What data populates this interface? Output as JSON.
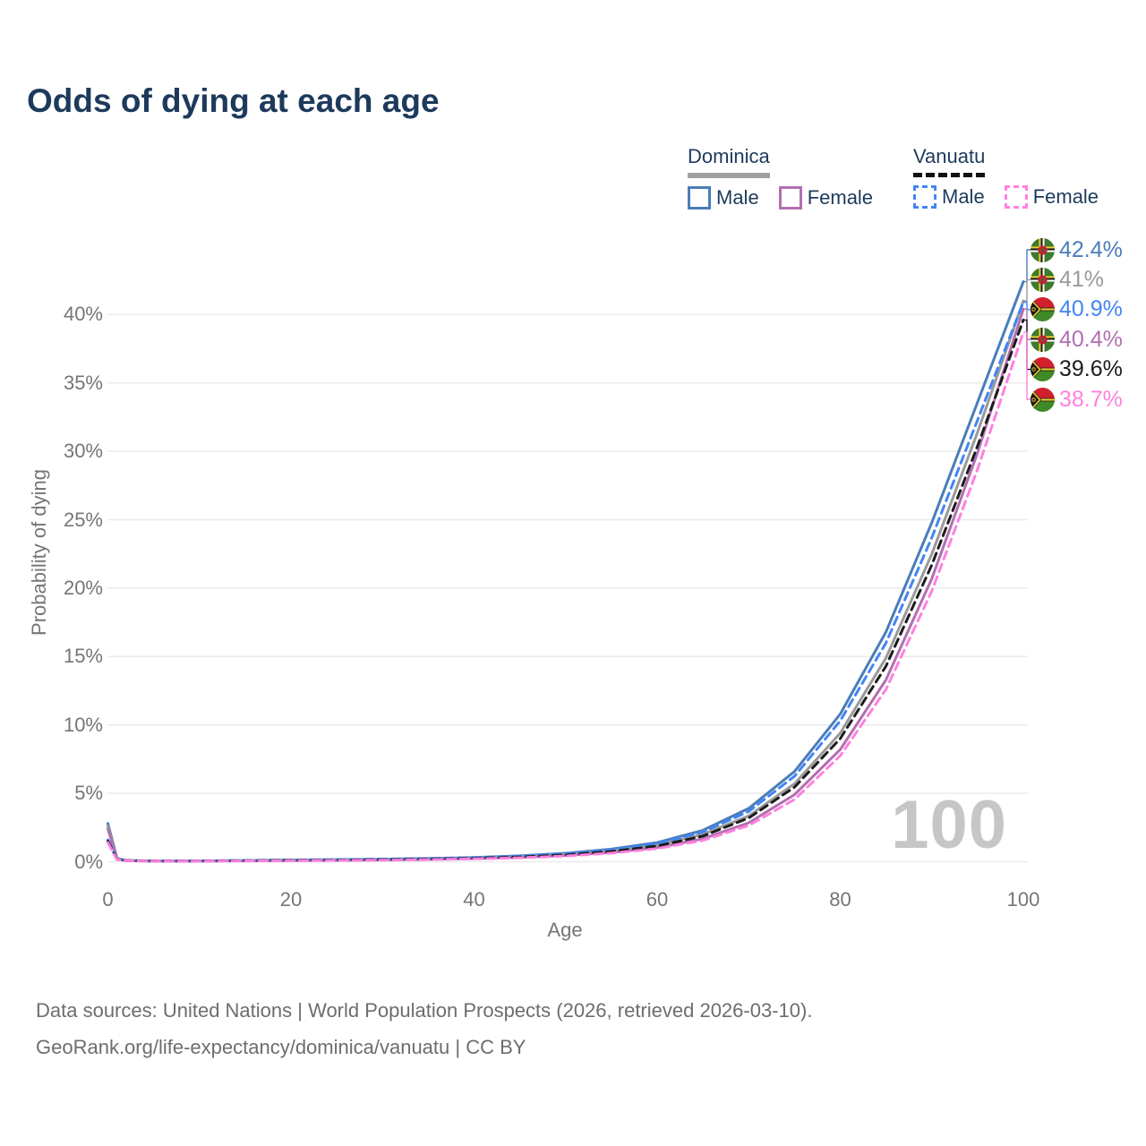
{
  "title": "Odds of dying at each age",
  "legend": {
    "groups": [
      {
        "title": "Dominica",
        "underline_style": "solid",
        "underline_color": "#a0a0a0",
        "items": [
          {
            "label": "Male",
            "color": "#4a7db8",
            "dash": false
          },
          {
            "label": "Female",
            "color": "#b26fb0",
            "dash": false
          }
        ]
      },
      {
        "title": "Vanuatu",
        "underline_style": "dashed",
        "underline_color": "#111111",
        "items": [
          {
            "label": "Male",
            "color": "#4285f4",
            "dash": true
          },
          {
            "label": "Female",
            "color": "#ff80e0",
            "dash": true
          }
        ]
      }
    ]
  },
  "chart_data": {
    "type": "line",
    "title": "Odds of dying at each age",
    "xlabel": "Age",
    "ylabel": "Probability of dying",
    "xlim": [
      0,
      100
    ],
    "ylim": [
      0,
      44
    ],
    "x_ticks": [
      0,
      20,
      40,
      60,
      80,
      100
    ],
    "y_ticks": [
      0,
      5,
      10,
      15,
      20,
      25,
      30,
      35,
      40
    ],
    "y_tick_suffix": "%",
    "grid": "horizontal",
    "legend_position": "top-right",
    "watermark": "100",
    "ages": [
      0,
      1,
      2,
      5,
      10,
      15,
      20,
      25,
      30,
      35,
      40,
      45,
      50,
      55,
      60,
      65,
      70,
      75,
      80,
      85,
      90,
      95,
      100
    ],
    "series": [
      {
        "name": "Dominica Male",
        "color": "#4a7db8",
        "dash": "solid",
        "flag": "dominica",
        "end_label": "42.4%",
        "values": [
          2.8,
          0.25,
          0.1,
          0.06,
          0.06,
          0.09,
          0.13,
          0.16,
          0.19,
          0.24,
          0.31,
          0.43,
          0.62,
          0.92,
          1.4,
          2.3,
          3.9,
          6.6,
          10.8,
          16.8,
          24.8,
          33.6,
          42.4
        ]
      },
      {
        "name": "Dominica",
        "color": "#9a9a9a",
        "dash": "solid",
        "flag": "dominica",
        "end_label": "41%",
        "values": [
          2.6,
          0.22,
          0.09,
          0.05,
          0.05,
          0.08,
          0.11,
          0.13,
          0.16,
          0.21,
          0.27,
          0.38,
          0.54,
          0.8,
          1.22,
          2.0,
          3.35,
          5.7,
          9.4,
          14.9,
          22.5,
          31.4,
          41.0
        ]
      },
      {
        "name": "Vanuatu Male",
        "color": "#4285f4",
        "dash": "dashed",
        "flag": "vanuatu",
        "end_label": "40.9%",
        "values": [
          1.6,
          0.18,
          0.08,
          0.05,
          0.06,
          0.09,
          0.12,
          0.15,
          0.18,
          0.23,
          0.3,
          0.41,
          0.59,
          0.87,
          1.33,
          2.18,
          3.68,
          6.25,
          10.3,
          16.0,
          23.7,
          32.3,
          40.9
        ]
      },
      {
        "name": "Dominica Female",
        "color": "#b26fb0",
        "dash": "solid",
        "flag": "dominica",
        "end_label": "40.4%",
        "values": [
          2.4,
          0.2,
          0.08,
          0.04,
          0.05,
          0.06,
          0.08,
          0.1,
          0.13,
          0.17,
          0.23,
          0.32,
          0.46,
          0.68,
          1.03,
          1.68,
          2.85,
          4.9,
          8.2,
          13.3,
          20.7,
          29.9,
          40.4
        ]
      },
      {
        "name": "Vanuatu",
        "color": "#1c1c1c",
        "dash": "dashed",
        "flag": "vanuatu",
        "end_label": "39.6%",
        "values": [
          1.5,
          0.17,
          0.08,
          0.05,
          0.05,
          0.07,
          0.1,
          0.12,
          0.15,
          0.19,
          0.25,
          0.35,
          0.5,
          0.75,
          1.15,
          1.88,
          3.2,
          5.45,
          9.0,
          14.3,
          21.7,
          30.4,
          39.6
        ]
      },
      {
        "name": "Vanuatu Female",
        "color": "#ff80e0",
        "dash": "dashed",
        "flag": "vanuatu",
        "end_label": "38.7%",
        "values": [
          1.4,
          0.15,
          0.07,
          0.04,
          0.04,
          0.06,
          0.08,
          0.1,
          0.12,
          0.16,
          0.21,
          0.29,
          0.42,
          0.63,
          0.96,
          1.56,
          2.65,
          4.55,
          7.75,
          12.6,
          19.8,
          28.7,
          38.7
        ]
      }
    ]
  },
  "footer": {
    "line1": "Data sources: United Nations | World Population Prospects (2026, retrieved 2026-03-10).",
    "line2": "GeoRank.org/life-expectancy/dominica/vanuatu | CC BY"
  }
}
